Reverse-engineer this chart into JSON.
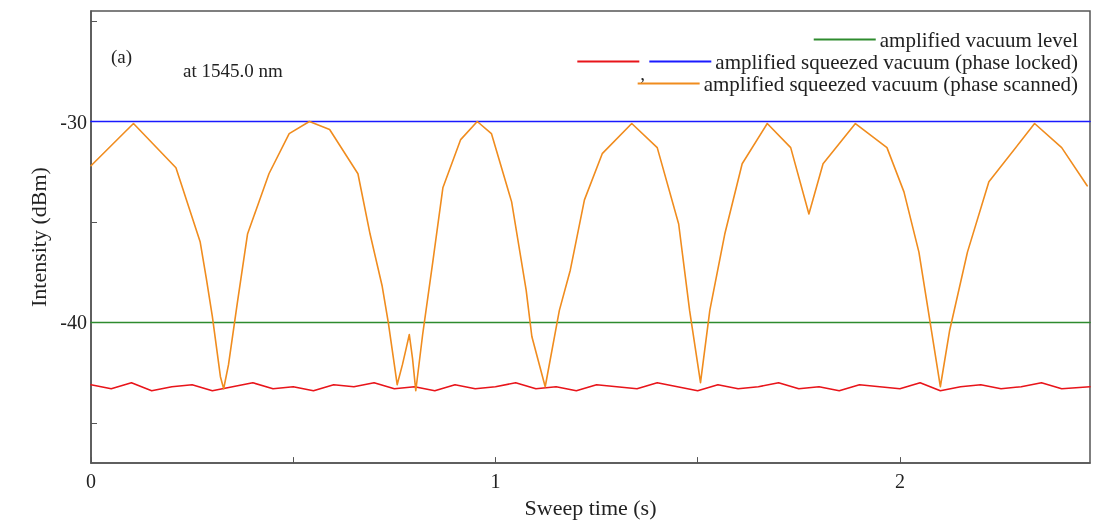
{
  "chart_data": {
    "type": "line",
    "xlabel": "Sweep time (s)",
    "ylabel": "Intensity (dBm)",
    "annotations": [
      "(a)",
      "at 1545.0 nm",
      ","
    ],
    "xlim": [
      0,
      2.47
    ],
    "ylim": [
      -47,
      -24.5
    ],
    "xticks": [
      0,
      {
        "value": 0.5,
        "label": null
      },
      1,
      {
        "value": 1.5,
        "label": null
      },
      2
    ],
    "yticks": [
      {
        "value": -45,
        "label": null
      },
      -40,
      {
        "value": -35,
        "label": null
      },
      -30,
      {
        "value": -25,
        "label": null
      }
    ],
    "grid": false,
    "legend": "top right",
    "marker": "none",
    "line_style": "solid",
    "series": [
      {
        "name": "amplified vacuum level",
        "color": "#2e8b2e",
        "x": [
          0,
          2.47
        ],
        "values": [
          -40,
          -40
        ]
      },
      {
        "color": "#e8141a",
        "x": [
          0,
          0.05,
          0.1,
          0.15,
          0.2,
          0.25,
          0.3,
          0.35,
          0.4,
          0.45,
          0.5,
          0.55,
          0.6,
          0.65,
          0.7,
          0.75,
          0.8,
          0.85,
          0.9,
          0.95,
          1,
          1.05,
          1.1,
          1.15,
          1.2,
          1.25,
          1.3,
          1.35,
          1.4,
          1.45,
          1.5,
          1.55,
          1.6,
          1.65,
          1.7,
          1.75,
          1.8,
          1.85,
          1.9,
          1.95,
          2,
          2.05,
          2.1,
          2.15,
          2.2,
          2.25,
          2.3,
          2.35,
          2.4,
          2.47
        ],
        "values": [
          -43.1,
          -43.3,
          -43.0,
          -43.4,
          -43.2,
          -43.1,
          -43.4,
          -43.2,
          -43.0,
          -43.3,
          -43.2,
          -43.4,
          -43.1,
          -43.2,
          -43.0,
          -43.3,
          -43.2,
          -43.4,
          -43.1,
          -43.3,
          -43.2,
          -43.0,
          -43.3,
          -43.2,
          -43.4,
          -43.1,
          -43.2,
          -43.3,
          -43.0,
          -43.2,
          -43.4,
          -43.1,
          -43.3,
          -43.2,
          -43.0,
          -43.3,
          -43.2,
          -43.4,
          -43.1,
          -43.2,
          -43.3,
          -43.0,
          -43.4,
          -43.2,
          -43.1,
          -43.3,
          -43.2,
          -43.0,
          -43.3,
          -43.2
        ]
      },
      {
        "name": "amplified squeezed vacuum (phase locked)",
        "color": "#1a1aff",
        "x": [
          0,
          2.47
        ],
        "values": [
          -30,
          -30
        ]
      },
      {
        "name": "amplified squeezed vacuum (phase scanned)",
        "color": "#f08c1e",
        "x": [
          0,
          0.105,
          0.21,
          0.27,
          0.285,
          0.3,
          0.32,
          0.328,
          0.34,
          0.362,
          0.387,
          0.44,
          0.49,
          0.54,
          0.59,
          0.66,
          0.69,
          0.72,
          0.735,
          0.75,
          0.757,
          0.77,
          0.778,
          0.787,
          0.795,
          0.803,
          0.82,
          0.845,
          0.87,
          0.914,
          0.955,
          0.99,
          1.04,
          1.076,
          1.09,
          1.123,
          1.158,
          1.185,
          1.22,
          1.264,
          1.337,
          1.4,
          1.453,
          1.48,
          1.507,
          1.53,
          1.567,
          1.61,
          1.672,
          1.73,
          1.775,
          1.81,
          1.89,
          1.968,
          2.01,
          2.047,
          2.07,
          2.1,
          2.123,
          2.167,
          2.22,
          2.333,
          2.4,
          2.463
        ],
        "values": [
          -32.2,
          -30.1,
          -32.3,
          -36.0,
          -37.8,
          -39.7,
          -42.7,
          -43.3,
          -42.1,
          -39.0,
          -35.6,
          -32.6,
          -30.6,
          -30.0,
          -30.4,
          -32.6,
          -35.6,
          -38.2,
          -40.0,
          -42.1,
          -43.1,
          -42.1,
          -41.4,
          -40.6,
          -41.8,
          -43.4,
          -40.6,
          -37.0,
          -33.3,
          -30.9,
          -30.0,
          -30.6,
          -34.0,
          -38.4,
          -40.7,
          -43.2,
          -39.4,
          -37.4,
          -33.9,
          -31.6,
          -30.1,
          -31.3,
          -35.1,
          -39.4,
          -43.0,
          -39.4,
          -35.6,
          -32.1,
          -30.1,
          -31.3,
          -34.6,
          -32.1,
          -30.1,
          -31.3,
          -33.5,
          -36.5,
          -39.4,
          -43.2,
          -40.4,
          -36.5,
          -33.0,
          -30.1,
          -31.3,
          -33.2
        ]
      }
    ]
  }
}
